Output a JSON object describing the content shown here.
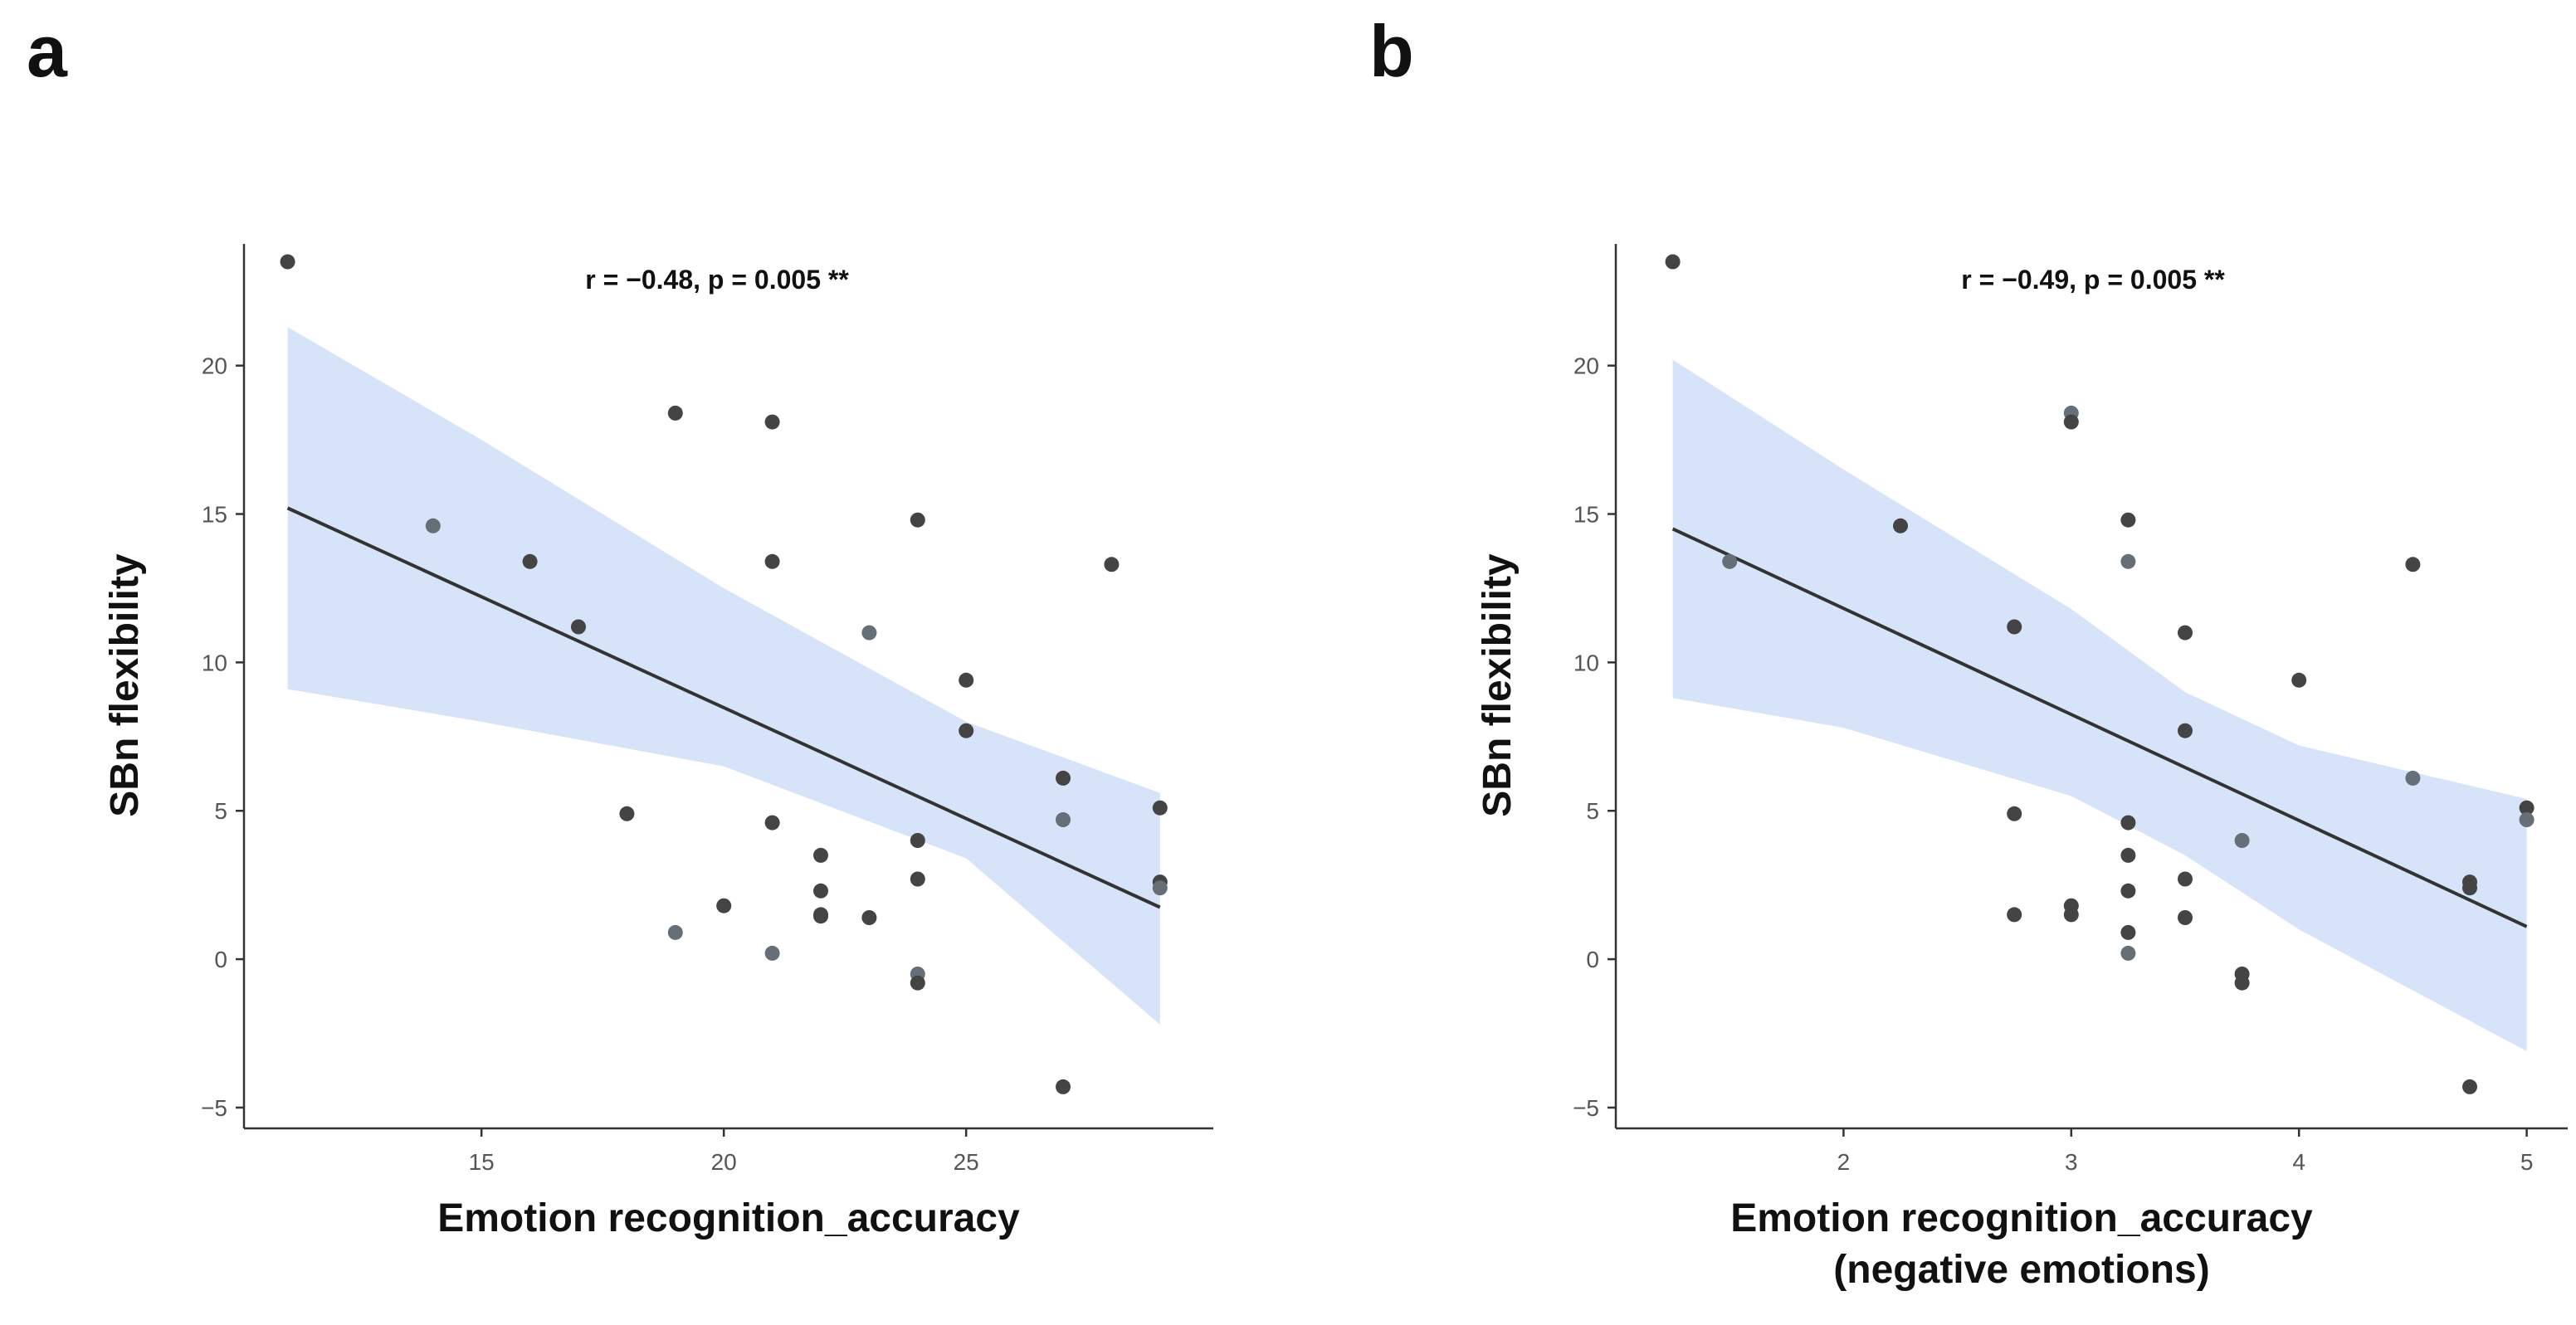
{
  "chart_data": [
    {
      "panel": "a",
      "type": "scatter",
      "annotation": "r = −0.48, p = 0.005 **",
      "xlabel": [
        "Emotion recognition_accuracy"
      ],
      "ylabel": "SBn flexibility",
      "xlim": [
        10.1,
        30.1
      ],
      "ylim": [
        -5.7,
        24.1
      ],
      "xticks": [
        15,
        20,
        25
      ],
      "yticks": [
        -5,
        0,
        5,
        10,
        15,
        20
      ],
      "ytick_labels": [
        "−5",
        "0",
        "5",
        "10",
        "15",
        "20"
      ],
      "fit": {
        "x_start": 11,
        "x_end": 29,
        "y_start": 15.2,
        "y_end": 1.75
      },
      "ci": {
        "x": [
          11,
          15,
          20,
          25,
          29
        ],
        "lower": [
          9.1,
          8.0,
          6.5,
          3.4,
          -2.2
        ],
        "upper": [
          21.3,
          17.5,
          12.5,
          8.0,
          5.6
        ]
      },
      "points": [
        {
          "x": 11,
          "y": 23.5
        },
        {
          "x": 14,
          "y": 14.6
        },
        {
          "x": 16,
          "y": 13.4
        },
        {
          "x": 17,
          "y": 11.2
        },
        {
          "x": 18,
          "y": 4.9
        },
        {
          "x": 19,
          "y": 18.4
        },
        {
          "x": 19,
          "y": 0.9
        },
        {
          "x": 20,
          "y": 1.8
        },
        {
          "x": 21,
          "y": 18.1
        },
        {
          "x": 21,
          "y": 13.4
        },
        {
          "x": 21,
          "y": 4.6
        },
        {
          "x": 21,
          "y": 0.2
        },
        {
          "x": 22,
          "y": 3.5
        },
        {
          "x": 22,
          "y": 2.3
        },
        {
          "x": 22,
          "y": 1.5
        },
        {
          "x": 22,
          "y": 1.45
        },
        {
          "x": 23,
          "y": 11.0
        },
        {
          "x": 23,
          "y": 1.4
        },
        {
          "x": 24,
          "y": 14.8
        },
        {
          "x": 24,
          "y": 4.0
        },
        {
          "x": 24,
          "y": 2.7
        },
        {
          "x": 24,
          "y": -0.5
        },
        {
          "x": 24,
          "y": -0.8
        },
        {
          "x": 25,
          "y": 9.4
        },
        {
          "x": 25,
          "y": 7.7
        },
        {
          "x": 27,
          "y": 6.1
        },
        {
          "x": 27,
          "y": 4.7
        },
        {
          "x": 27,
          "y": -4.3
        },
        {
          "x": 28,
          "y": 13.3
        },
        {
          "x": 29,
          "y": 5.1
        },
        {
          "x": 29,
          "y": 2.6
        },
        {
          "x": 29,
          "y": 2.4
        }
      ]
    },
    {
      "panel": "b",
      "type": "scatter",
      "annotation": "r = −0.49, p = 0.005 **",
      "xlabel": [
        "Emotion recognition_accuracy",
        "(negative emotions)"
      ],
      "ylabel": "SBn flexibility",
      "xlim": [
        1.0,
        5.18
      ],
      "ylim": [
        -5.7,
        24.1
      ],
      "xticks": [
        2,
        3,
        4,
        5
      ],
      "yticks": [
        -5,
        0,
        5,
        10,
        15,
        20
      ],
      "ytick_labels": [
        "−5",
        "0",
        "5",
        "10",
        "15",
        "20"
      ],
      "fit": {
        "x_start": 1.25,
        "x_end": 5,
        "y_start": 14.5,
        "y_end": 1.1
      },
      "ci": {
        "x": [
          1.25,
          2.0,
          3.0,
          3.5,
          4.0,
          5.0
        ],
        "lower": [
          8.8,
          7.8,
          5.5,
          3.5,
          1.0,
          -3.1
        ],
        "upper": [
          20.2,
          16.5,
          11.8,
          9.0,
          7.2,
          5.4
        ]
      },
      "points": [
        {
          "x": 1.25,
          "y": 23.5
        },
        {
          "x": 1.5,
          "y": 13.4
        },
        {
          "x": 2.25,
          "y": 14.6
        },
        {
          "x": 2.75,
          "y": 11.2
        },
        {
          "x": 2.75,
          "y": 4.9
        },
        {
          "x": 2.75,
          "y": 1.5
        },
        {
          "x": 3.0,
          "y": 18.4
        },
        {
          "x": 3.0,
          "y": 18.1
        },
        {
          "x": 3.0,
          "y": 1.8
        },
        {
          "x": 3.0,
          "y": 1.5
        },
        {
          "x": 3.25,
          "y": 14.8
        },
        {
          "x": 3.25,
          "y": 13.4
        },
        {
          "x": 3.25,
          "y": 4.6
        },
        {
          "x": 3.25,
          "y": 3.5
        },
        {
          "x": 3.25,
          "y": 2.3
        },
        {
          "x": 3.25,
          "y": 0.9
        },
        {
          "x": 3.25,
          "y": 0.2
        },
        {
          "x": 3.5,
          "y": 11.0
        },
        {
          "x": 3.5,
          "y": 7.7
        },
        {
          "x": 3.5,
          "y": 2.7
        },
        {
          "x": 3.5,
          "y": 1.4
        },
        {
          "x": 3.75,
          "y": 4.0
        },
        {
          "x": 3.75,
          "y": -0.5
        },
        {
          "x": 3.75,
          "y": -0.8
        },
        {
          "x": 4.0,
          "y": 9.4
        },
        {
          "x": 4.5,
          "y": 13.3
        },
        {
          "x": 4.5,
          "y": 6.1
        },
        {
          "x": 4.75,
          "y": 2.6
        },
        {
          "x": 4.75,
          "y": 2.4
        },
        {
          "x": 4.75,
          "y": -4.3
        },
        {
          "x": 5.0,
          "y": 5.1
        },
        {
          "x": 5.0,
          "y": 4.7
        }
      ]
    }
  ]
}
